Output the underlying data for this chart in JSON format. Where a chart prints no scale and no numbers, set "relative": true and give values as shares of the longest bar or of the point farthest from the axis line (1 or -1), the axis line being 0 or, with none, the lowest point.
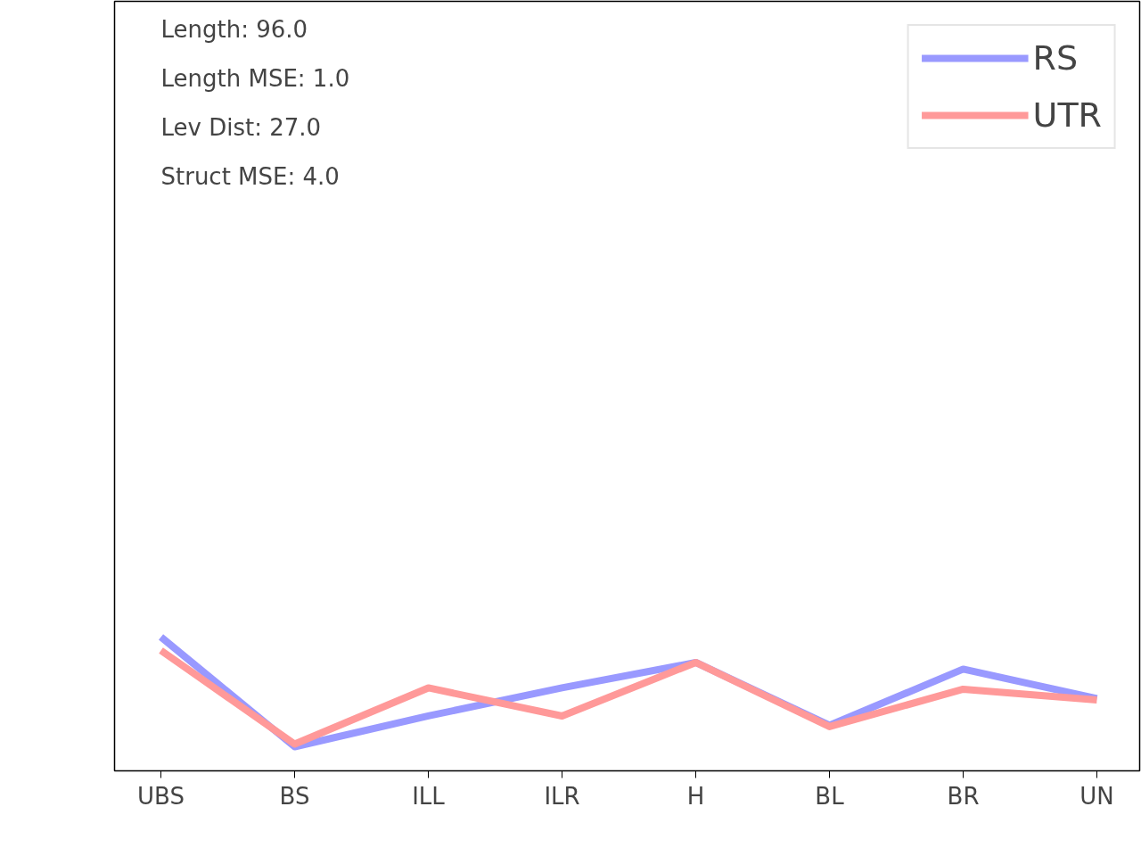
{
  "chart_data": {
    "type": "line",
    "relative": true,
    "categories": [
      "UBS",
      "BS",
      "ILL",
      "ILR",
      "H",
      "BL",
      "BR",
      "UN"
    ],
    "series": [
      {
        "name": "RS",
        "color": "#9999ff",
        "values": [
          1,
          0.18,
          0.41,
          0.62,
          0.81,
          0.34,
          0.76,
          0.54
        ]
      },
      {
        "name": "UTR",
        "color": "#ff9999",
        "values": [
          0.9,
          0.2,
          0.62,
          0.41,
          0.81,
          0.33,
          0.61,
          0.53
        ]
      }
    ],
    "annotations": [
      "Length: 96.0",
      "Length MSE: 1.0",
      "Lev Dist: 27.0",
      "Struct MSE: 4.0"
    ],
    "legend": "top right",
    "grid": false
  }
}
